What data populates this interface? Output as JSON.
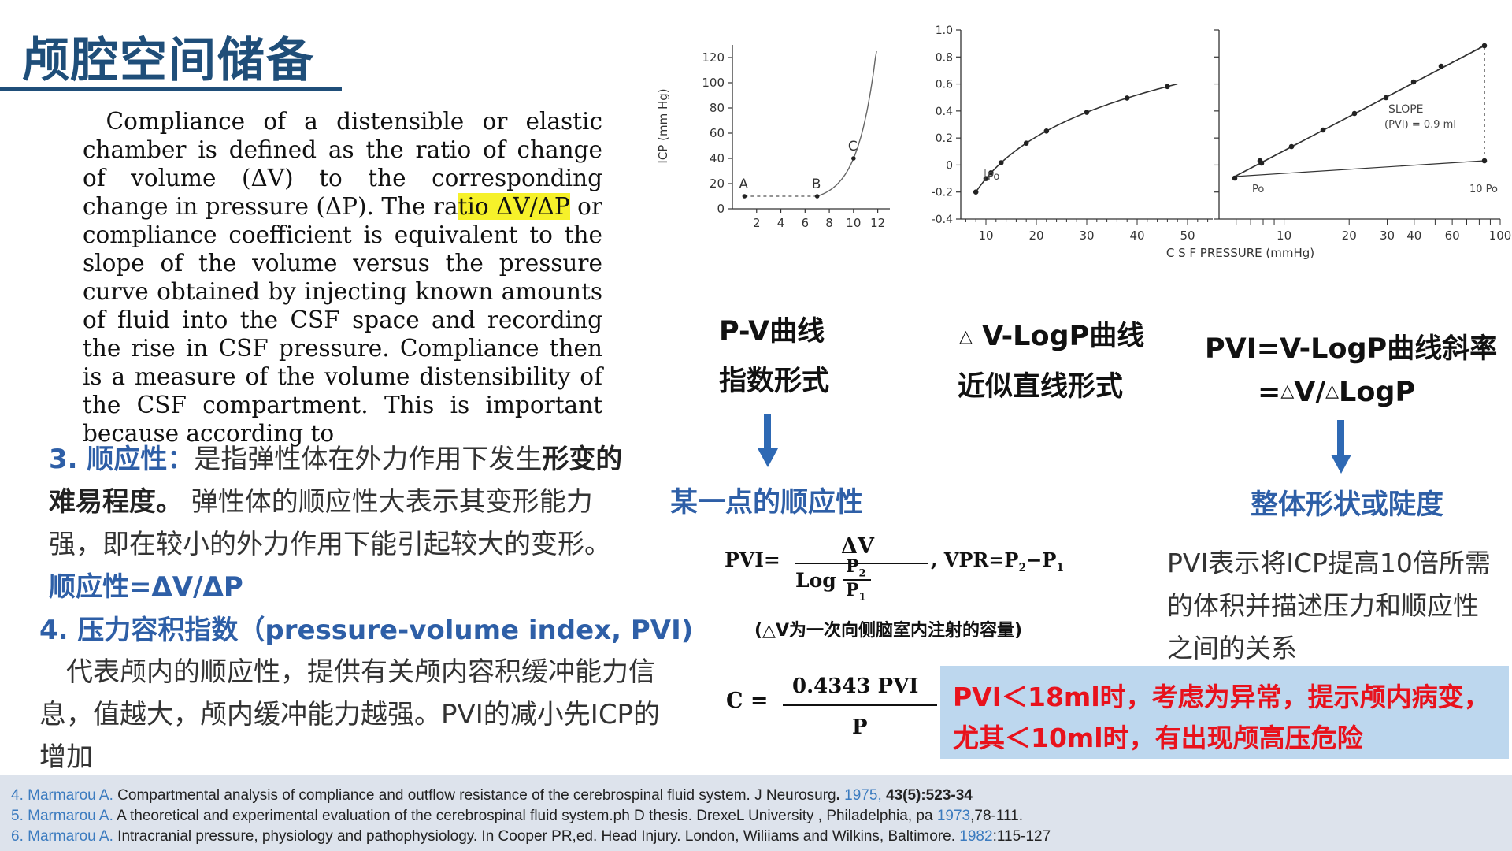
{
  "title": "颅腔空间储备",
  "quote": {
    "before": "Compliance of a distensible or elastic chamber is defined as the ratio of change of volume (ΔV) to the corresponding change in pressure (ΔP). The ra",
    "highlight": "tio ΔV/ΔP",
    "after": " or compliance coefficient is equivalent to the slope of the volume versus the pressure curve obtained by injecting known amounts of fluid into the CSF space and recording the rise in CSF pressure. Compliance then is a measure of the volume distensibility of the CSF compartment. This is important because according to"
  },
  "section3": {
    "head": "3. 顺应性：",
    "t1": "是指弹性体在外力作用下发生",
    "b1": "形变的难易程度。",
    "t2": " 弹性体的顺应性大表示其变形能力强，即在较小的外力作用下能引起较大的变形。",
    "formula": "顺应性=ΔV/ΔP"
  },
  "section4": {
    "head": "4. 压力容积指数（pressure-volume index, PVI)",
    "body": "代表颅内的顺应性，提供有关颅内容积缓冲能力信息，值越大，颅内缓冲能力越强。PVI的减小先ICP的增加"
  },
  "chart_pv": {
    "type": "line",
    "ylabel": "ICP (mm Hg)",
    "yticks": [
      "120",
      "100",
      "80",
      "60",
      "40",
      "20",
      "0"
    ],
    "xticks": [
      "2",
      "4",
      "6",
      "8",
      "10",
      "12"
    ],
    "points": [
      {
        "label": "A",
        "x": 1,
        "y": 10
      },
      {
        "label": "B",
        "x": 7,
        "y": 10
      },
      {
        "label": "C",
        "x": 10,
        "y": 40
      }
    ]
  },
  "chart_log": {
    "type": "line",
    "yticks": [
      "1.0",
      "0.8",
      "0.6",
      "0.4",
      "0.2",
      "0",
      "-0.2",
      "-0.4"
    ],
    "xticks_left": [
      "10",
      "20",
      "30",
      "40",
      "50"
    ],
    "xticks_right": [
      "10",
      "20",
      "30",
      "40",
      "60",
      "100"
    ],
    "xlabel": "C S F   PRESSURE  (mmHg)",
    "left_label": "Po",
    "right_labels": {
      "po": "Po",
      "ten_po": "10 Po",
      "slope": "SLOPE",
      "pvi": "(PVI) = 0.9 ml"
    }
  },
  "curve_pv": {
    "line1": "P-V曲线",
    "line2": "指数形式",
    "result": "某一点的顺应性"
  },
  "curve_log": {
    "tri": "△",
    "line1": " V-LogP曲线",
    "line2": "近似直线形式"
  },
  "curve_pvi": {
    "line1": "PVI=V-LogP曲线斜率",
    "eq": "=",
    "tri": "△",
    "v": "V/",
    "logp": "LogP",
    "result": "整体形状或陡度"
  },
  "formula": {
    "pvi_lhs": "PVI=",
    "num": "ΔV",
    "den_log": "Log",
    "p2": "P",
    "p2sub": "2",
    "p1": "P",
    "p1sub": "1",
    "vpr": ", VPR=P",
    "vpr_2": "2",
    "vpr_minus": "−P",
    "vpr_1": "1",
    "note": "(△V为一次向侧脑室内注射的容量)",
    "c_lhs": "C =",
    "c_num": "0.4343 PVI",
    "c_den": "P"
  },
  "pvi_desc": "PVI表示将ICP提高10倍所需的体积并描述压力和顺应性之间的关系",
  "alert": {
    "line1": "PVI＜18ml时，考虑为异常，提示颅内病变，",
    "line2": "尤其＜10ml时，有出现颅高压危险"
  },
  "refs": [
    {
      "num": "4. Marmarou A.",
      "text": " Compartmental analysis of compliance and outflow resistance of the cerebrospinal fluid system. J Neurosurg",
      "dot": ". ",
      "year": "1975,",
      "tail": " 43(5):523-34"
    },
    {
      "num": "5. Marmarou A.",
      "text": " A theoretical and experimental evaluation of the cerebrospinal fluid system.ph D thesis. DrexeL University , Philadelphia, pa ",
      "dot": "",
      "year": "1973",
      "tail": ",78-111."
    },
    {
      "num": "6. Marmarou A.",
      "text": " Intracranial pressure, physiology and pathophysiology. In Cooper PR,ed. Head Injury. London, Wiliiams and Wilkins, Baltimore. ",
      "dot": "",
      "year": "1982",
      "tail": ":115-127"
    }
  ],
  "colors": {
    "title": "#1f4e79",
    "accent_blue": "#2e5fa7",
    "alert_bg": "#bdd7ee",
    "alert_text": "#e8121c",
    "refs_bg": "#dde3ec",
    "highlight": "#f6f12a"
  }
}
